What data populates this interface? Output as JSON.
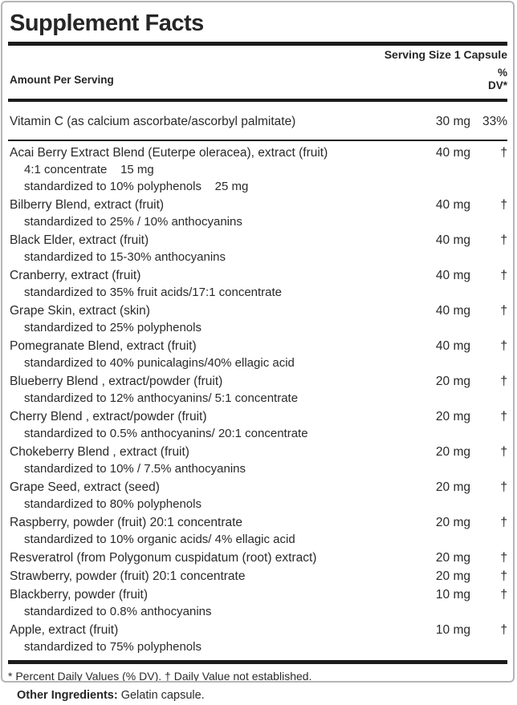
{
  "label": {
    "title": "Supplement Facts",
    "serving_size": "Serving Size 1 Capsule",
    "header": {
      "amount_col": "Amount Per Serving",
      "dv_line1": "%",
      "dv_line2": "DV*"
    },
    "rows": [
      {
        "name": "Vitamin C (as calcium ascorbate/ascorbyl palmitate)",
        "amount": "30 mg",
        "dv": "33%",
        "subs": [],
        "separator_after": true
      },
      {
        "name": "Acai Berry Extract Blend (Euterpe oleracea), extract (fruit)",
        "amount": "40 mg",
        "dv": "†",
        "subs": [
          "4:1 concentrate    15 mg",
          "standardized to 10% polyphenols    25 mg"
        ],
        "separator_after": false
      },
      {
        "name": "Bilberry Blend, extract (fruit)",
        "amount": "40 mg",
        "dv": "†",
        "subs": [
          "standardized to 25% / 10% anthocyanins"
        ],
        "separator_after": false
      },
      {
        "name": "Black Elder, extract (fruit)",
        "amount": "40 mg",
        "dv": "†",
        "subs": [
          "standardized to 15-30% anthocyanins"
        ],
        "separator_after": false
      },
      {
        "name": "Cranberry, extract (fruit)",
        "amount": "40 mg",
        "dv": "†",
        "subs": [
          "standardized to 35% fruit acids/17:1 concentrate"
        ],
        "separator_after": false
      },
      {
        "name": "Grape Skin, extract (skin)",
        "amount": "40 mg",
        "dv": "†",
        "subs": [
          "standardized to 25% polyphenols"
        ],
        "separator_after": false
      },
      {
        "name": "Pomegranate Blend, extract (fruit)",
        "amount": "40 mg",
        "dv": "†",
        "subs": [
          "standardized to 40% punicalagins/40% ellagic acid"
        ],
        "separator_after": false
      },
      {
        "name": "Blueberry Blend , extract/powder (fruit)",
        "amount": "20 mg",
        "dv": "†",
        "subs": [
          "standardized to 12% anthocyanins/ 5:1 concentrate"
        ],
        "separator_after": false
      },
      {
        "name": "Cherry Blend , extract/powder (fruit)",
        "amount": "20 mg",
        "dv": "†",
        "subs": [
          "standardized to 0.5% anthocyanins/ 20:1 concentrate"
        ],
        "separator_after": false
      },
      {
        "name": "Chokeberry Blend , extract (fruit)",
        "amount": "20 mg",
        "dv": "†",
        "subs": [
          "standardized to 10% / 7.5% anthocyanins"
        ],
        "separator_after": false
      },
      {
        "name": "Grape Seed, extract (seed)",
        "amount": "20 mg",
        "dv": "†",
        "subs": [
          "standardized to 80% polyphenols"
        ],
        "separator_after": false
      },
      {
        "name": "Raspberry, powder (fruit) 20:1 concentrate",
        "amount": "20 mg",
        "dv": "†",
        "subs": [
          "standardized to 10% organic acids/ 4% ellagic acid"
        ],
        "separator_after": false
      },
      {
        "name": "Resveratrol (from Polygonum cuspidatum (root) extract)",
        "amount": "20 mg",
        "dv": "†",
        "subs": [],
        "separator_after": false
      },
      {
        "name": "Strawberry, powder (fruit) 20:1 concentrate",
        "amount": "20 mg",
        "dv": "†",
        "subs": [],
        "separator_after": false
      },
      {
        "name": "Blackberry, powder (fruit)",
        "amount": "10 mg",
        "dv": "†",
        "subs": [
          "standardized to 0.8% anthocyanins"
        ],
        "separator_after": false
      },
      {
        "name": "Apple, extract (fruit)",
        "amount": "10 mg",
        "dv": "†",
        "subs": [
          "standardized to 75% polyphenols"
        ],
        "separator_after": false
      }
    ],
    "footnote": "* Percent Daily Values (% DV). † Daily Value not established.",
    "other_ingredients_label": "Other Ingredients:",
    "other_ingredients_value": " Gelatin capsule."
  },
  "colors": {
    "text": "#2a2a2a",
    "rule": "#1c1c1c",
    "box_border": "#b5b5b5",
    "background": "#ffffff"
  }
}
